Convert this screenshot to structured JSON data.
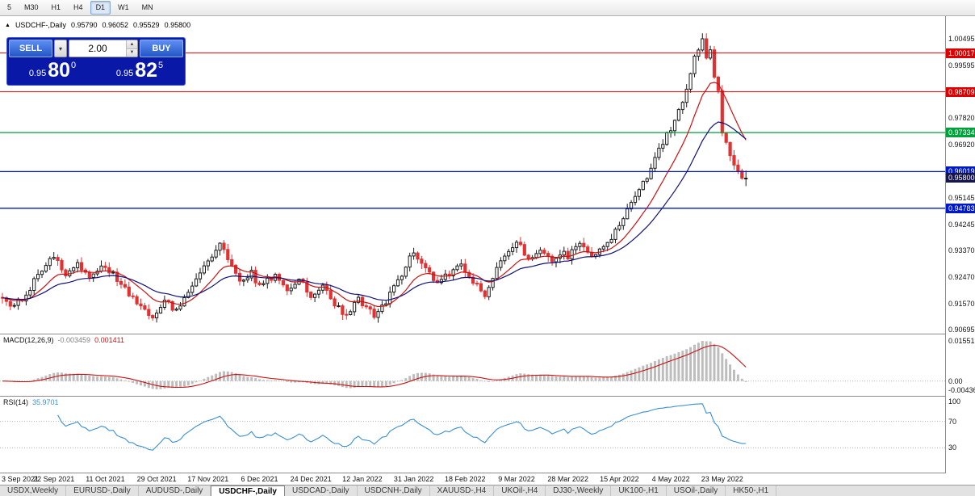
{
  "toolbar": {
    "timeframes": [
      {
        "label": "5",
        "active": false
      },
      {
        "label": "M30",
        "active": false
      },
      {
        "label": "H1",
        "active": false
      },
      {
        "label": "H4",
        "active": false
      },
      {
        "label": "D1",
        "active": true
      },
      {
        "label": "W1",
        "active": false
      },
      {
        "label": "MN",
        "active": false
      }
    ]
  },
  "chart_header": {
    "symbol": "USDCHF-,Daily",
    "open": "0.95790",
    "high": "0.96052",
    "low": "0.95529",
    "close": "0.95800"
  },
  "trade_panel": {
    "sell_label": "SELL",
    "buy_label": "BUY",
    "volume": "2.00",
    "sell_price": {
      "prefix": "0.95",
      "big": "80",
      "sup": "0"
    },
    "buy_price": {
      "prefix": "0.95",
      "big": "82",
      "sup": "5"
    }
  },
  "chart_data": {
    "type": "candlestick",
    "title": "USDCHF-,Daily",
    "symbol": "USDCHF-",
    "timeframe": "Daily",
    "grid": false,
    "bar_count": 189,
    "y_range": {
      "min": 0.90695,
      "max": 1.00495
    },
    "last_bar_ohlc": {
      "open": 0.9579,
      "high": 0.96052,
      "low": 0.95529,
      "close": 0.958
    },
    "peak": {
      "bar": 177,
      "high": 1.0062
    },
    "close_keyframes": [
      [
        0,
        0.9185
      ],
      [
        2,
        0.915
      ],
      [
        5,
        0.9165
      ],
      [
        8,
        0.9235
      ],
      [
        11,
        0.929
      ],
      [
        13,
        0.932
      ],
      [
        16,
        0.926
      ],
      [
        19,
        0.9295
      ],
      [
        22,
        0.924
      ],
      [
        26,
        0.9285
      ],
      [
        30,
        0.922
      ],
      [
        34,
        0.916
      ],
      [
        38,
        0.9115
      ],
      [
        41,
        0.9165
      ],
      [
        44,
        0.913
      ],
      [
        47,
        0.9205
      ],
      [
        50,
        0.9255
      ],
      [
        52,
        0.9305
      ],
      [
        55,
        0.936
      ],
      [
        57,
        0.93
      ],
      [
        60,
        0.9235
      ],
      [
        63,
        0.926
      ],
      [
        65,
        0.9215
      ],
      [
        69,
        0.9255
      ],
      [
        72,
        0.9205
      ],
      [
        75,
        0.924
      ],
      [
        78,
        0.9185
      ],
      [
        81,
        0.922
      ],
      [
        84,
        0.9155
      ],
      [
        87,
        0.9115
      ],
      [
        90,
        0.918
      ],
      [
        91,
        0.9155
      ],
      [
        94,
        0.912
      ],
      [
        97,
        0.916
      ],
      [
        100,
        0.9235
      ],
      [
        103,
        0.931
      ],
      [
        104,
        0.933
      ],
      [
        107,
        0.9275
      ],
      [
        110,
        0.9225
      ],
      [
        113,
        0.926
      ],
      [
        116,
        0.9285
      ],
      [
        119,
        0.923
      ],
      [
        122,
        0.9185
      ],
      [
        125,
        0.927
      ],
      [
        128,
        0.934
      ],
      [
        130,
        0.9365
      ],
      [
        133,
        0.931
      ],
      [
        136,
        0.934
      ],
      [
        139,
        0.929
      ],
      [
        142,
        0.933
      ],
      [
        143,
        0.931
      ],
      [
        146,
        0.9365
      ],
      [
        149,
        0.932
      ],
      [
        152,
        0.9345
      ],
      [
        155,
        0.94
      ],
      [
        156,
        0.943
      ],
      [
        158,
        0.947
      ],
      [
        161,
        0.954
      ],
      [
        164,
        0.961
      ],
      [
        167,
        0.97
      ],
      [
        169,
        0.975
      ],
      [
        171,
        0.98
      ],
      [
        173,
        0.989
      ],
      [
        175,
        0.999
      ],
      [
        177,
        1.004
      ],
      [
        178,
        0.9985
      ],
      [
        179,
        1.0015
      ],
      [
        180,
        0.9925
      ],
      [
        181,
        0.9865
      ],
      [
        182,
        0.974
      ],
      [
        184,
        0.9655
      ],
      [
        186,
        0.961
      ],
      [
        187,
        0.9572
      ],
      [
        188,
        0.958
      ]
    ],
    "x_labels": [
      {
        "index": 0,
        "text": "3 Sep 2021"
      },
      {
        "index": 13,
        "text": "22 Sep 2021"
      },
      {
        "index": 26,
        "text": "11 Oct 2021"
      },
      {
        "index": 39,
        "text": "29 Oct 2021"
      },
      {
        "index": 52,
        "text": "17 Nov 2021"
      },
      {
        "index": 65,
        "text": "6 Dec 2021"
      },
      {
        "index": 78,
        "text": "24 Dec 2021"
      },
      {
        "index": 91,
        "text": "12 Jan 2022"
      },
      {
        "index": 104,
        "text": "31 Jan 2022"
      },
      {
        "index": 117,
        "text": "18 Feb 2022"
      },
      {
        "index": 130,
        "text": "9 Mar 2022"
      },
      {
        "index": 143,
        "text": "28 Mar 2022"
      },
      {
        "index": 156,
        "text": "15 Apr 2022"
      },
      {
        "index": 169,
        "text": "4 May 2022"
      },
      {
        "index": 182,
        "text": "23 May 2022"
      }
    ],
    "y_ticks": [
      "1.00495",
      "0.99595",
      "0.97820",
      "0.96920",
      "0.95145",
      "0.94245",
      "0.93370",
      "0.92470",
      "0.91570",
      "0.90695"
    ],
    "y_badges": [
      {
        "text": "1.00017",
        "color": "#dd0000"
      },
      {
        "text": "0.98709",
        "color": "#dd0000"
      },
      {
        "text": "0.97334",
        "color": "#00a13c"
      },
      {
        "text": "0.96019",
        "color": "#0019c8"
      },
      {
        "text": "0.95800",
        "color": "#15154a"
      },
      {
        "text": "0.94783",
        "color": "#0019c8"
      }
    ],
    "hlines": [
      {
        "price": 1.00017,
        "color": "#dd0000",
        "width": 1
      },
      {
        "price": 0.98709,
        "color": "#dd0000",
        "width": 1
      },
      {
        "price": 0.97334,
        "color": "#00a13c",
        "width": 1.3
      },
      {
        "price": 0.96019,
        "color": "#0019c8",
        "width": 1.3
      },
      {
        "price": 0.94783,
        "color": "#0019c8",
        "width": 1.3
      }
    ],
    "moving_averages": [
      {
        "name": "fast",
        "period": 12,
        "color": "#cc1111"
      },
      {
        "name": "slow",
        "period": 26,
        "color": "#10107a"
      }
    ],
    "candle_colors": {
      "up_fill": "#ffffff",
      "up_stroke": "#1a1a1a",
      "down": "#e03232"
    },
    "indicators": {
      "macd": {
        "label": "MACD(12,26,9)",
        "value_main": "-0.003459",
        "value_signal": "0.001411",
        "params": [
          12,
          26,
          9
        ],
        "axis_labels": [
          "0.015515",
          "0.00",
          "-0.004365"
        ],
        "histogram_color": "#bdbdbd",
        "signal_color": "#cc1111"
      },
      "rsi": {
        "label": "RSI(14)",
        "value": "35.9701",
        "period": 14,
        "levels": [
          100,
          70,
          30
        ],
        "line_color": "#3a8fd2"
      }
    }
  },
  "tabs": [
    {
      "label": "USDX,Weekly",
      "active": false
    },
    {
      "label": "EURUSD-,Daily",
      "active": false
    },
    {
      "label": "AUDUSD-,Daily",
      "active": false
    },
    {
      "label": "USDCHF-,Daily",
      "active": true
    },
    {
      "label": "USDCAD-,Daily",
      "active": false
    },
    {
      "label": "USDCNH-,Daily",
      "active": false
    },
    {
      "label": "XAUUSD-,H4",
      "active": false
    },
    {
      "label": "UKOil-,H4",
      "active": false
    },
    {
      "label": "DJ30-,Weekly",
      "active": false
    },
    {
      "label": "UK100-,H1",
      "active": false
    },
    {
      "label": "USOil-,Daily",
      "active": false
    },
    {
      "label": "HK50-,H1",
      "active": false
    }
  ]
}
